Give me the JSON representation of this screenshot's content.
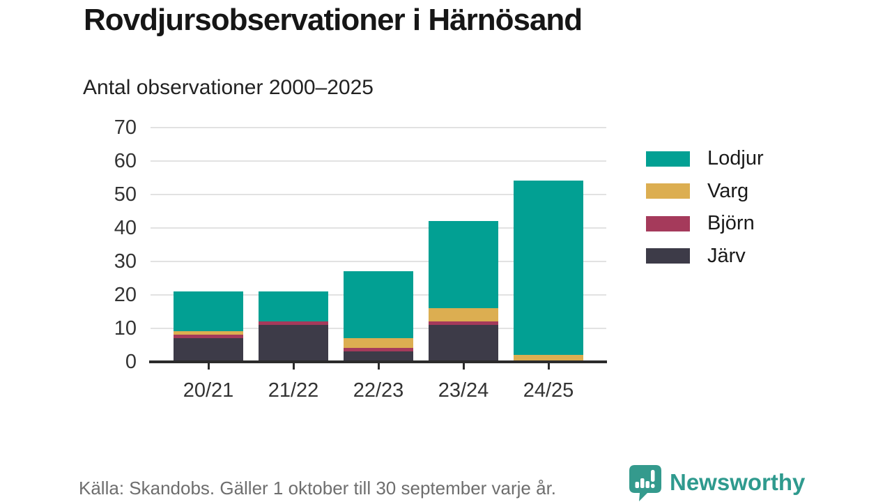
{
  "header": {
    "title": "Rovdjursobservationer i Härnösand",
    "subtitle": "Antal observationer 2000–2025"
  },
  "chart_data": {
    "type": "bar",
    "stacked": true,
    "title": "Rovdjursobservationer i Härnösand",
    "subtitle": "Antal observationer 2000–2025",
    "categories": [
      "20/21",
      "21/22",
      "22/23",
      "23/24",
      "24/25"
    ],
    "series": [
      {
        "name": "Järv",
        "color": "#3d3b48",
        "values": [
          7,
          11,
          3,
          11,
          0
        ]
      },
      {
        "name": "Björn",
        "color": "#a53a5b",
        "values": [
          1,
          1,
          1,
          1,
          0
        ]
      },
      {
        "name": "Varg",
        "color": "#dcae51",
        "values": [
          1,
          0,
          3,
          4,
          2
        ]
      },
      {
        "name": "Lodjur",
        "color": "#02a093",
        "values": [
          12,
          9,
          20,
          26,
          52
        ]
      }
    ],
    "totals": [
      21,
      21,
      27,
      42,
      54
    ],
    "ylim": [
      0,
      70
    ],
    "yticks": [
      0,
      10,
      20,
      30,
      40,
      50,
      60,
      70
    ],
    "grid": true,
    "legend_position": "right",
    "legend_order": [
      "Lodjur",
      "Varg",
      "Björn",
      "Järv"
    ]
  },
  "colors": {
    "grid": "#e2e2e2",
    "axis": "#2b2b2b",
    "tick_label": "#333333"
  },
  "footer": {
    "source": "Källa: Skandobs. Gäller 1 oktober till 30 september varje år.",
    "brand": "Newsworthy",
    "brand_color": "#2f9a8e",
    "logo_color": "#349a8d"
  }
}
